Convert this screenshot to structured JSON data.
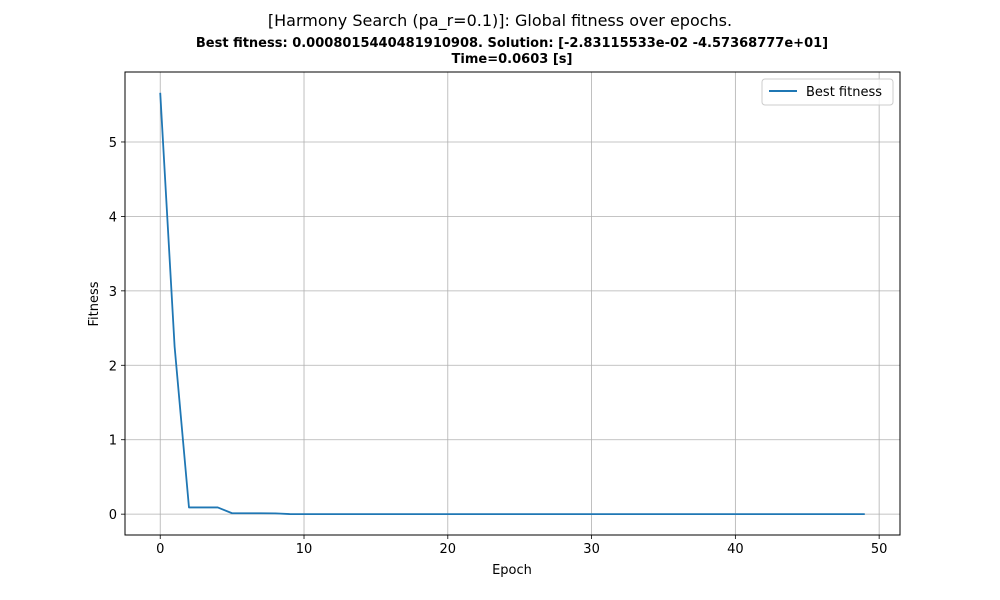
{
  "chart_data": {
    "type": "line",
    "title": "[Harmony Search (pa_r=0.1)]: Global fitness over epochs.",
    "subtitle_line1": "Best fitness: 0.0008015440481910908. Solution: [-2.83115533e-02 -4.57368777e+01]",
    "subtitle_line2": "Time=0.0603 [s]",
    "xlabel": "Epoch",
    "ylabel": "Fitness",
    "xlim": [
      -2.45,
      51.45
    ],
    "ylim": [
      -0.28,
      5.94
    ],
    "xticks": [
      0,
      10,
      20,
      30,
      40,
      50
    ],
    "yticks": [
      0,
      1,
      2,
      3,
      4,
      5
    ],
    "grid": true,
    "legend_position": "top-right",
    "series": [
      {
        "name": "Best fitness",
        "color": "#1f77b4",
        "x": [
          0,
          1,
          2,
          3,
          4,
          5,
          6,
          7,
          8,
          9,
          10,
          11,
          12,
          13,
          14,
          15,
          16,
          17,
          18,
          19,
          20,
          21,
          22,
          23,
          24,
          25,
          26,
          27,
          28,
          29,
          30,
          31,
          32,
          33,
          34,
          35,
          36,
          37,
          38,
          39,
          40,
          41,
          42,
          43,
          44,
          45,
          45,
          46,
          47,
          48,
          49
        ],
        "y": [
          5.66,
          2.25,
          0.09,
          0.09,
          0.09,
          0.012,
          0.012,
          0.012,
          0.011,
          0.001,
          0.0008,
          0.0008,
          0.0008,
          0.0008,
          0.0008,
          0.0008,
          0.0008,
          0.0008,
          0.0008,
          0.0008,
          0.0008,
          0.0008,
          0.0008,
          0.0008,
          0.0008,
          0.0008,
          0.0008,
          0.0008,
          0.0008,
          0.0008,
          0.0008,
          0.0008,
          0.0008,
          0.0008,
          0.0008,
          0.0008,
          0.0008,
          0.0008,
          0.0008,
          0.0008,
          0.0008,
          0.0008,
          0.0008,
          0.0008,
          0.0008,
          0.0008,
          0.0008,
          0.0008,
          0.0008,
          0.0008,
          0.0008
        ]
      }
    ]
  }
}
